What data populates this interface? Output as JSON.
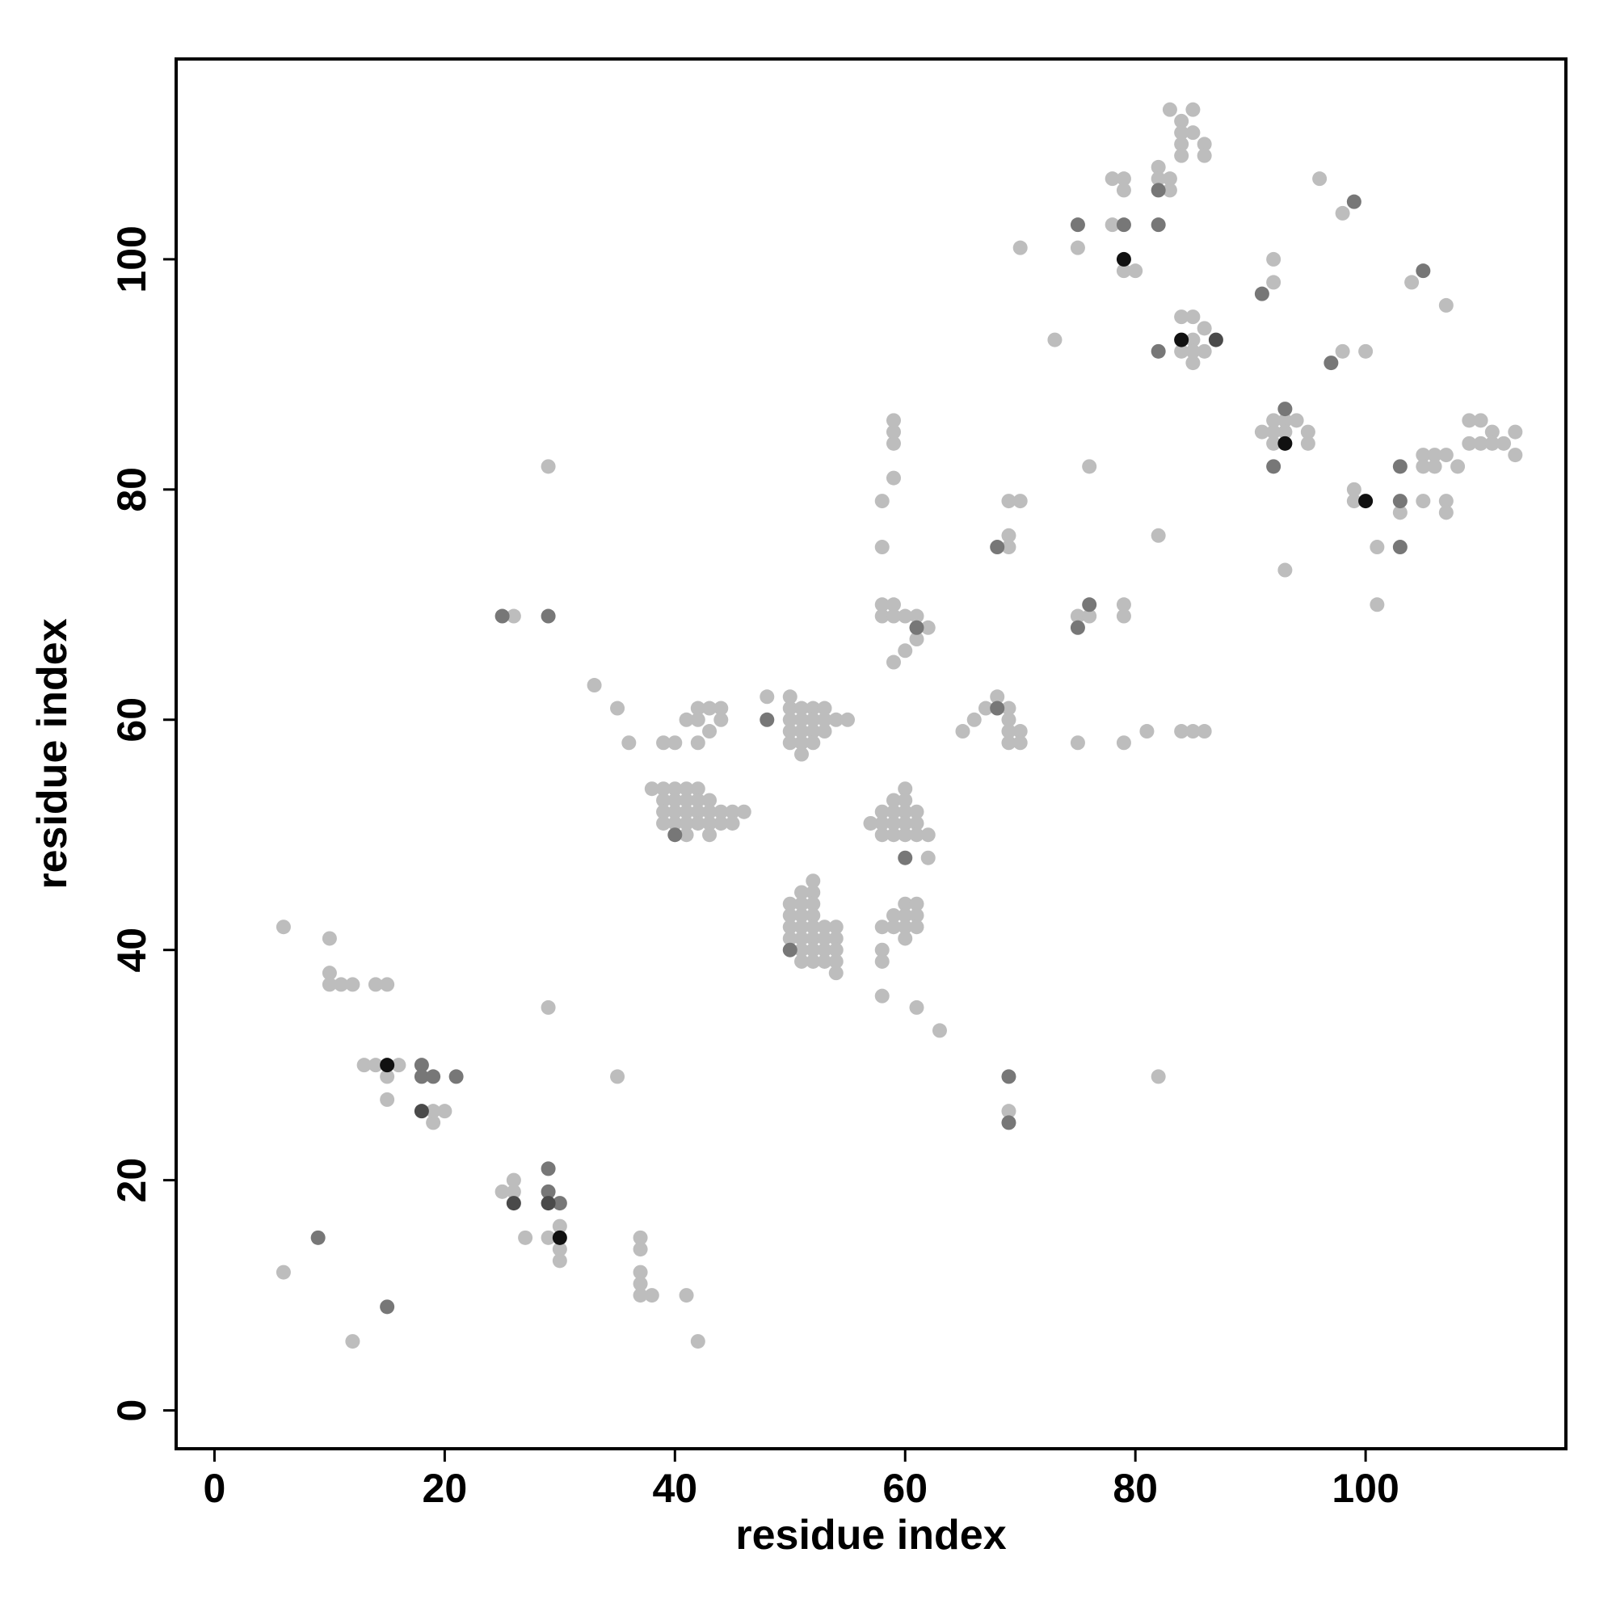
{
  "chart_data": {
    "type": "scatter",
    "x_label": "residue index",
    "y_label": "residue index",
    "xlim": [
      -3.33,
      117.4
    ],
    "ylim": [
      -3.33,
      117.4
    ],
    "xticks": [
      0,
      20,
      40,
      60,
      80,
      100
    ],
    "yticks": [
      0,
      20,
      40,
      60,
      80,
      100
    ],
    "grid": false,
    "series": [
      {
        "color": "#bdbdbd",
        "x": [
          6,
          10,
          10,
          10,
          11,
          12,
          14,
          15,
          13,
          14,
          16,
          15,
          15,
          19,
          19,
          20,
          6,
          12,
          25,
          26,
          26,
          27,
          29,
          30,
          30,
          30,
          29,
          35,
          37,
          37,
          37,
          37,
          37,
          38,
          41,
          42,
          29,
          26,
          33,
          35,
          36,
          39,
          40,
          41,
          42,
          42,
          42,
          43,
          43,
          44,
          44,
          38,
          39,
          39,
          39,
          39,
          40,
          40,
          40,
          40,
          41,
          41,
          41,
          41,
          41,
          42,
          42,
          42,
          42,
          43,
          43,
          43,
          43,
          44,
          44,
          45,
          45,
          46,
          48,
          50,
          50,
          50,
          50,
          50,
          51,
          51,
          51,
          51,
          51,
          52,
          52,
          52,
          52,
          53,
          53,
          53,
          54,
          55,
          50,
          50,
          50,
          50,
          51,
          51,
          51,
          51,
          51,
          51,
          51,
          52,
          52,
          52,
          52,
          52,
          52,
          52,
          52,
          53,
          53,
          53,
          53,
          54,
          54,
          54,
          54,
          54,
          57,
          58,
          58,
          58,
          59,
          59,
          59,
          59,
          60,
          60,
          60,
          60,
          60,
          61,
          61,
          61,
          62,
          62,
          58,
          58,
          58,
          58,
          59,
          59,
          60,
          60,
          60,
          60,
          61,
          61,
          61,
          61,
          63,
          58,
          58,
          58,
          58,
          59,
          59,
          59,
          59,
          59,
          59,
          59,
          60,
          60,
          61,
          61,
          62,
          65,
          66,
          67,
          68,
          69,
          69,
          69,
          69,
          70,
          70,
          69,
          69,
          69,
          70,
          70,
          69,
          73,
          75,
          75,
          75,
          76,
          76,
          78,
          78,
          79,
          79,
          79,
          79,
          79,
          79,
          80,
          81,
          82,
          82,
          82,
          82,
          83,
          83,
          83,
          84,
          84,
          84,
          84,
          84,
          84,
          85,
          85,
          85,
          85,
          85,
          85,
          86,
          86,
          86,
          86,
          84,
          85,
          86,
          91,
          92,
          92,
          92,
          92,
          92,
          93,
          93,
          94,
          95,
          95,
          93,
          96,
          98,
          98,
          100,
          99,
          99,
          101,
          101,
          103,
          104,
          105,
          105,
          105,
          106,
          106,
          107,
          107,
          107,
          107,
          108,
          109,
          109,
          110,
          110,
          111,
          111,
          112,
          113,
          113
        ],
        "y": [
          42,
          41,
          38,
          37,
          37,
          37,
          37,
          37,
          30,
          30,
          30,
          29,
          27,
          25,
          26,
          26,
          12,
          6,
          19,
          20,
          19,
          15,
          15,
          16,
          14,
          13,
          35,
          29,
          15,
          14,
          12,
          11,
          10,
          10,
          10,
          6,
          82,
          69,
          63,
          61,
          58,
          58,
          58,
          60,
          61,
          60,
          58,
          61,
          59,
          61,
          60,
          54,
          54,
          53,
          52,
          51,
          54,
          53,
          52,
          51,
          54,
          53,
          52,
          51,
          50,
          54,
          53,
          52,
          51,
          53,
          52,
          51,
          50,
          52,
          51,
          52,
          51,
          52,
          62,
          62,
          61,
          60,
          59,
          58,
          61,
          60,
          59,
          58,
          57,
          61,
          60,
          59,
          58,
          61,
          60,
          59,
          60,
          60,
          44,
          43,
          42,
          41,
          45,
          44,
          43,
          42,
          41,
          40,
          39,
          46,
          45,
          44,
          43,
          42,
          41,
          40,
          39,
          42,
          41,
          40,
          39,
          42,
          41,
          40,
          39,
          38,
          51,
          52,
          51,
          50,
          53,
          52,
          51,
          50,
          54,
          53,
          52,
          51,
          50,
          52,
          51,
          50,
          50,
          48,
          42,
          40,
          39,
          36,
          43,
          42,
          44,
          43,
          42,
          41,
          44,
          43,
          42,
          35,
          33,
          79,
          75,
          70,
          69,
          70,
          69,
          65,
          81,
          84,
          85,
          86,
          69,
          66,
          69,
          67,
          68,
          59,
          60,
          61,
          62,
          61,
          60,
          59,
          58,
          59,
          58,
          75,
          76,
          79,
          79,
          101,
          26,
          93,
          101,
          69,
          58,
          69,
          82,
          103,
          107,
          107,
          106,
          99,
          70,
          69,
          58,
          99,
          59,
          29,
          76,
          108,
          107,
          113,
          107,
          106,
          112,
          111,
          110,
          109,
          95,
          92,
          113,
          111,
          95,
          93,
          92,
          91,
          110,
          109,
          94,
          92,
          59,
          59,
          59,
          85,
          100,
          98,
          86,
          85,
          84,
          86,
          85,
          86,
          85,
          84,
          73,
          107,
          104,
          92,
          92,
          80,
          79,
          75,
          70,
          78,
          98,
          83,
          82,
          79,
          83,
          82,
          96,
          83,
          79,
          78,
          82,
          86,
          84,
          86,
          84,
          85,
          84,
          84,
          85,
          83
        ]
      },
      {
        "color": "#777777",
        "x": [
          9,
          15,
          18,
          18,
          19,
          21,
          25,
          29,
          29,
          29,
          30,
          40,
          48,
          50,
          60,
          61,
          68,
          68,
          69,
          69,
          75,
          75,
          76,
          79,
          82,
          82,
          82,
          91,
          92,
          93,
          97,
          99,
          103,
          103,
          103,
          105
        ],
        "y": [
          15,
          9,
          30,
          29,
          29,
          29,
          69,
          69,
          21,
          19,
          18,
          50,
          60,
          40,
          48,
          68,
          75,
          61,
          29,
          25,
          103,
          68,
          70,
          103,
          103,
          106,
          92,
          97,
          82,
          87,
          91,
          105,
          82,
          79,
          75,
          99
        ]
      },
      {
        "color": "#4a4a4a",
        "x": [
          18,
          26,
          29,
          87
        ],
        "y": [
          26,
          18,
          18,
          93
        ]
      },
      {
        "color": "#111111",
        "x": [
          15,
          30,
          79,
          84,
          93,
          100
        ],
        "y": [
          30,
          15,
          100,
          93,
          84,
          79
        ]
      }
    ]
  }
}
